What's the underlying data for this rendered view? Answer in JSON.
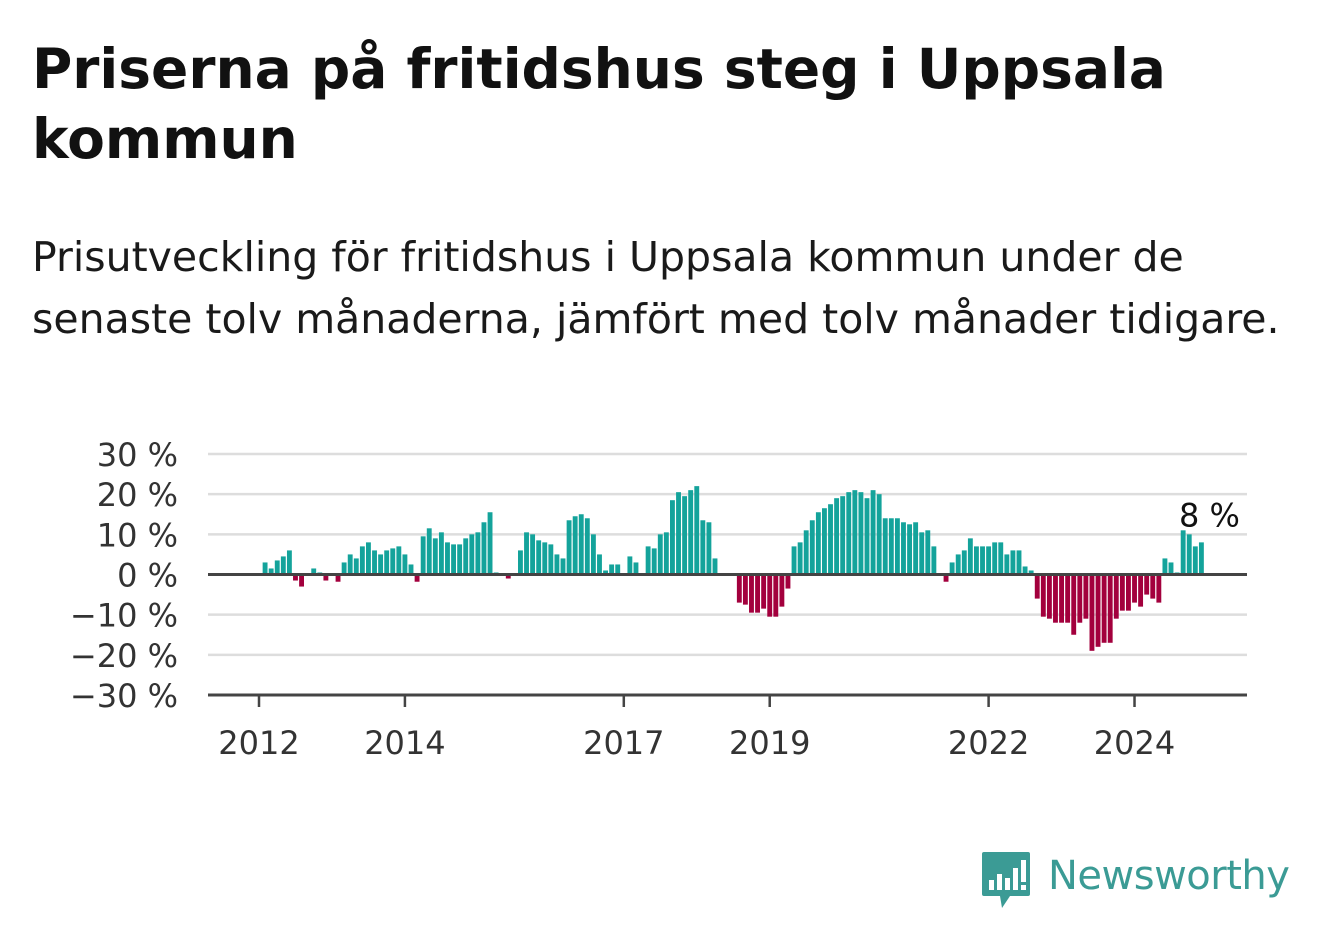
{
  "title": "Priserna på fritidshus steg i Uppsala kommun",
  "subtitle": "Prisutveckling för fritidshus i Uppsala kommun under de senaste tolv månaderna, jämfört med tolv månader tidigare.",
  "brand": {
    "name": "Newsworthy",
    "color": "#3b9b95"
  },
  "colors": {
    "positive": "#14a39b",
    "negative": "#a3003d",
    "grid": "#dddddd",
    "axis": "#444444"
  },
  "chart_data": {
    "type": "bar",
    "x_start": "2012-01",
    "frequency": "monthly",
    "ylim": [
      -30,
      30
    ],
    "yticks": [
      30,
      20,
      10,
      0,
      -10,
      -20,
      -30
    ],
    "ytick_labels": [
      "30 %",
      "20 %",
      "10 %",
      "0 %",
      "−10 %",
      "−20 %",
      "−30 %"
    ],
    "xticks": [
      "2012",
      "2014",
      "2017",
      "2019",
      "2022",
      "2024"
    ],
    "annotation": {
      "label": "8 %",
      "value": 8,
      "date": "2025-01"
    },
    "values": [
      0,
      3,
      1.5,
      3.5,
      4.5,
      6,
      -1.5,
      -3,
      0,
      1.5,
      0.5,
      -1.5,
      0,
      -1.8,
      3,
      5,
      4,
      7,
      8,
      6,
      5,
      6,
      6.5,
      7,
      5,
      2.5,
      -1.8,
      9.5,
      11.5,
      9,
      10.5,
      8,
      7.5,
      7.5,
      9,
      10,
      10.5,
      13,
      15.5,
      0.5,
      0,
      -1,
      0,
      6,
      10.5,
      10,
      8.5,
      8,
      7.5,
      5,
      4,
      13.5,
      14.5,
      15,
      14,
      10,
      5,
      1,
      2.5,
      2.5,
      0,
      4.5,
      3,
      0,
      7,
      6.5,
      10,
      10.5,
      18.5,
      20.5,
      19.5,
      21,
      22,
      13.5,
      13,
      4,
      0,
      0,
      0,
      -7,
      -7.5,
      -9.5,
      -9.5,
      -8.5,
      -10.5,
      -10.5,
      -8,
      -3.5,
      7,
      8,
      11,
      13.5,
      15.5,
      16.5,
      17.5,
      19,
      19.5,
      20.5,
      21,
      20.5,
      19,
      21,
      20,
      14,
      14,
      14,
      13,
      12.5,
      13,
      10.5,
      11,
      7,
      0,
      -1.8,
      3,
      5,
      6,
      9,
      7,
      7,
      7,
      8,
      8,
      5,
      6,
      6,
      2,
      1,
      -6,
      -10.5,
      -11,
      -12,
      -12,
      -12,
      -15,
      -12,
      -11,
      -19,
      -18,
      -17,
      -17,
      -11,
      -9,
      -9,
      -7,
      -8,
      -5,
      -6,
      -7,
      4,
      3,
      0.5,
      11,
      10,
      7,
      8
    ]
  }
}
